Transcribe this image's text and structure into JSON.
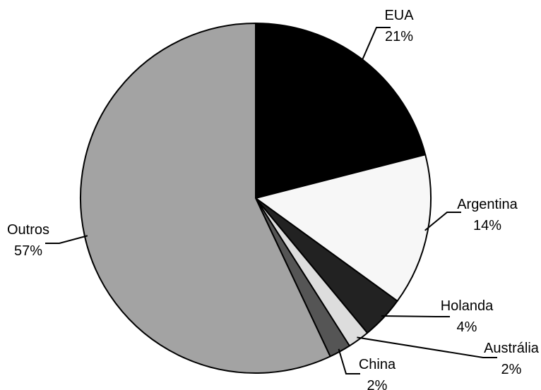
{
  "chart_data": {
    "type": "pie",
    "title": "",
    "start": "12 o'clock, clockwise",
    "slices": [
      {
        "label": "EUA",
        "value_label": "21%",
        "value": 21,
        "color": "#000000"
      },
      {
        "label": "Argentina",
        "value_label": "14%",
        "value": 14,
        "color": "#f7f7f7"
      },
      {
        "label": "Holanda",
        "value_label": "4%",
        "value": 4,
        "color": "#222222"
      },
      {
        "label": "Austrália",
        "value_label": "2%",
        "value": 2,
        "color": "#dddddd"
      },
      {
        "label": "China",
        "value_label": "2%",
        "value": 2,
        "color": "#555555"
      },
      {
        "label": "Outros",
        "value_label": "57%",
        "value": 57,
        "color": "#a3a3a3"
      }
    ]
  }
}
